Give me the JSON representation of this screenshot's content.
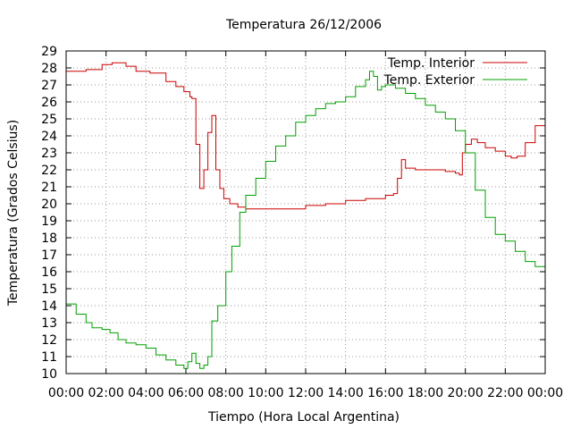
{
  "chart_data": {
    "type": "line",
    "title": "Temperatura 26/12/2006",
    "xlabel": "Tiempo (Hora Local Argentina)",
    "ylabel": "Temperatura (Grados Celsius)",
    "xlim": [
      0,
      24
    ],
    "ylim": [
      10,
      29
    ],
    "grid": true,
    "legend_position": "top-right",
    "x_tick_labels": [
      "00:00",
      "02:00",
      "04:00",
      "06:00",
      "08:00",
      "10:00",
      "12:00",
      "14:00",
      "16:00",
      "18:00",
      "20:00",
      "22:00",
      "00:00"
    ],
    "y_tick_labels": [
      "10",
      "11",
      "12",
      "13",
      "14",
      "15",
      "16",
      "17",
      "18",
      "19",
      "20",
      "21",
      "22",
      "23",
      "24",
      "25",
      "26",
      "27",
      "28",
      "29"
    ],
    "x_unit": "hours",
    "series": [
      {
        "name": "Temp. Interior",
        "color": "#cc0000",
        "x": [
          0,
          1.0,
          1.8,
          2.3,
          3.0,
          3.5,
          4.2,
          5.0,
          5.5,
          5.9,
          6.2,
          6.3,
          6.5,
          6.7,
          6.9,
          7.1,
          7.3,
          7.5,
          7.7,
          7.9,
          8.2,
          8.6,
          9.0,
          10.0,
          11.0,
          12.0,
          13.0,
          14.0,
          15.0,
          16.0,
          16.4,
          16.6,
          16.8,
          17.0,
          17.5,
          18.0,
          18.5,
          19.0,
          19.5,
          19.7,
          19.85,
          20.0,
          20.3,
          20.6,
          21.0,
          21.5,
          22.0,
          22.3,
          22.6,
          23.0,
          23.5,
          24.0
        ],
        "y": [
          27.8,
          27.9,
          28.2,
          28.3,
          28.1,
          27.8,
          27.7,
          27.2,
          26.9,
          26.6,
          26.3,
          26.2,
          23.5,
          20.9,
          22.0,
          24.2,
          25.2,
          22.0,
          20.9,
          20.3,
          20.0,
          19.8,
          19.7,
          19.7,
          19.7,
          19.9,
          20.0,
          20.2,
          20.3,
          20.5,
          20.6,
          21.5,
          22.6,
          22.1,
          22.0,
          22.0,
          22.0,
          21.9,
          21.8,
          21.7,
          23.0,
          23.5,
          23.8,
          23.6,
          23.3,
          23.1,
          22.8,
          22.7,
          22.8,
          23.6,
          24.6,
          25.6
        ]
      },
      {
        "name": "Temp. Exterior",
        "color": "#00a000",
        "x": [
          0,
          0.5,
          1.0,
          1.3,
          1.8,
          2.2,
          2.6,
          3.0,
          3.5,
          4.0,
          4.5,
          5.0,
          5.5,
          5.9,
          6.1,
          6.3,
          6.5,
          6.7,
          6.9,
          7.1,
          7.3,
          7.6,
          8.0,
          8.3,
          8.7,
          9.0,
          9.5,
          10.0,
          10.5,
          11.0,
          11.5,
          12.0,
          12.5,
          13.0,
          13.5,
          14.0,
          14.5,
          15.0,
          15.2,
          15.4,
          15.6,
          15.8,
          16.0,
          16.5,
          17.0,
          17.5,
          18.0,
          18.5,
          19.0,
          19.5,
          20.0,
          20.5,
          21.0,
          21.5,
          22.0,
          22.5,
          23.0,
          23.5,
          24.0
        ],
        "y": [
          14.1,
          13.5,
          13.0,
          12.7,
          12.6,
          12.4,
          12.0,
          11.8,
          11.7,
          11.5,
          11.1,
          10.8,
          10.5,
          10.3,
          10.7,
          11.2,
          10.6,
          10.3,
          10.5,
          11.0,
          13.1,
          14.0,
          16.0,
          17.5,
          19.5,
          20.5,
          21.5,
          22.5,
          23.4,
          24.0,
          24.8,
          25.2,
          25.6,
          25.9,
          26.0,
          26.3,
          26.9,
          27.3,
          27.8,
          27.5,
          26.7,
          26.9,
          27.0,
          26.8,
          26.5,
          26.2,
          25.8,
          25.4,
          25.0,
          24.3,
          23.0,
          20.8,
          19.2,
          18.2,
          17.8,
          17.2,
          16.6,
          16.3,
          16.1
        ]
      }
    ]
  }
}
